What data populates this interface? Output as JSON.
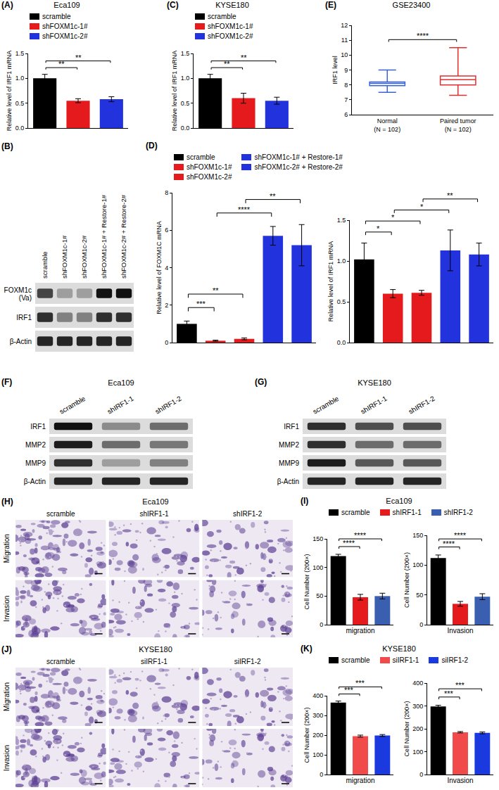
{
  "chart_data": [
    {
      "panel_label": "(A)",
      "type": "bar",
      "title": "Eca109",
      "categories": [
        "scramble",
        "shFOXM1c-1#",
        "shFOXM1c-2#"
      ],
      "values": [
        1.0,
        0.55,
        0.58
      ],
      "errors": [
        0.08,
        0.04,
        0.05
      ],
      "colors": [
        "#000000",
        "#e41a1c",
        "#2233dd"
      ],
      "y_label": "Relative level of IRF1 mRNA",
      "ylim": [
        0,
        1.5
      ],
      "yticks": [
        {
          "value": 0,
          "label": "0.0"
        },
        {
          "value": 0.5,
          "label": "0.5"
        },
        {
          "value": 1,
          "label": "1.0"
        },
        {
          "value": 1.5,
          "label": "1.5"
        }
      ],
      "tick_labels": "y",
      "grid": false,
      "legend": "top",
      "significance": [
        {
          "from": 0,
          "to": 1,
          "label": "**"
        },
        {
          "from": 0,
          "to": 2,
          "label": "**"
        }
      ]
    },
    {
      "panel_label": "(C)",
      "type": "bar",
      "title": "KYSE180",
      "categories": [
        "scramble",
        "shFOXM1c-1#",
        "shFOXM1c-2#"
      ],
      "values": [
        1.0,
        0.6,
        0.55
      ],
      "errors": [
        0.08,
        0.1,
        0.07
      ],
      "colors": [
        "#000000",
        "#e41a1c",
        "#2233dd"
      ],
      "y_label": "Relative level of IRF1 mRNA",
      "ylim": [
        0,
        1.5
      ],
      "yticks": [
        {
          "value": 0,
          "label": "0.0"
        },
        {
          "value": 0.5,
          "label": "0.5"
        },
        {
          "value": 1,
          "label": "1.0"
        },
        {
          "value": 1.5,
          "label": "1.5"
        }
      ],
      "tick_labels": "y",
      "grid": false,
      "legend": "top",
      "significance": [
        {
          "from": 0,
          "to": 1,
          "label": "**"
        },
        {
          "from": 0,
          "to": 2,
          "label": "**"
        }
      ]
    },
    {
      "panel_label": "(E)",
      "type": "box",
      "title": "GSE23400",
      "categories": [
        "Normal\n(N = 102)",
        "Paired tumor\n(N = 102)"
      ],
      "boxes": [
        {
          "min": 7.5,
          "q1": 7.95,
          "median": 8.1,
          "q3": 8.2,
          "max": 9.0
        },
        {
          "min": 7.3,
          "q1": 8.0,
          "median": 8.35,
          "q3": 8.6,
          "max": 10.5
        }
      ],
      "colors": [
        "#3b62d6",
        "#e03030"
      ],
      "y_label": "IRF1 level",
      "ylim": [
        6,
        12
      ],
      "yticks": [
        6,
        7,
        8,
        9,
        10,
        11,
        12
      ],
      "grid": false,
      "significance": [
        {
          "from": 0,
          "to": 1,
          "label": "****"
        }
      ]
    },
    {
      "panel_label": "(D)",
      "type": "bar",
      "categories": [
        "scramble",
        "shFOXM1c-1#",
        "shFOXM1c-2#",
        "shFOXM1c-1# + Restore-1#",
        "shFOXM1c-2# + Restore-2#"
      ],
      "values": [
        1.0,
        0.1,
        0.2,
        5.7,
        5.2
      ],
      "errors": [
        0.15,
        0.03,
        0.05,
        0.5,
        1.1
      ],
      "colors": [
        "#000000",
        "#e41a1c",
        "#e41a1c",
        "#2233dd",
        "#2233dd"
      ],
      "y_label": "Relative level of FOXM1C mRNA",
      "ylim": [
        0,
        8
      ],
      "yticks": [
        0,
        2,
        4,
        6,
        8
      ],
      "tick_labels": "y",
      "grid": false,
      "legend": "top",
      "significance": [
        {
          "from": 0,
          "to": 1,
          "label": "***"
        },
        {
          "from": 0,
          "to": 2,
          "label": "**"
        },
        {
          "from": 1,
          "to": 3,
          "label": "****"
        },
        {
          "from": 2,
          "to": 4,
          "label": "**"
        }
      ]
    },
    {
      "type": "bar",
      "categories": [
        "scramble",
        "shFOXM1c-1#",
        "shFOXM1c-2#",
        "shFOXM1c-1# + Restore-1#",
        "shFOXM1c-2# + Restore-2#"
      ],
      "values": [
        1.02,
        0.6,
        0.61,
        1.13,
        1.08
      ],
      "errors": [
        0.2,
        0.05,
        0.03,
        0.25,
        0.14
      ],
      "colors": [
        "#000000",
        "#e41a1c",
        "#e41a1c",
        "#2233dd",
        "#2233dd"
      ],
      "y_label": "Relative level of IRF1 mRNA",
      "ylim": [
        0,
        1.5
      ],
      "yticks": [
        {
          "value": 0,
          "label": "0.0"
        },
        {
          "value": 0.5,
          "label": "0.5"
        },
        {
          "value": 1,
          "label": "1.0"
        },
        {
          "value": 1.5,
          "label": "1.5"
        }
      ],
      "tick_labels": "y",
      "grid": false,
      "significance": [
        {
          "from": 0,
          "to": 1,
          "label": "*"
        },
        {
          "from": 0,
          "to": 2,
          "label": "*"
        },
        {
          "from": 1,
          "to": 3,
          "label": "*"
        },
        {
          "from": 2,
          "to": 4,
          "label": "**"
        }
      ]
    },
    {
      "panel_label": "(I)",
      "type": "bar",
      "title": "Eca109",
      "categories": [
        "scramble",
        "shIRF1-1",
        "shIRF1-2"
      ],
      "values": [
        120,
        48,
        50
      ],
      "errors": [
        3,
        5,
        5
      ],
      "colors": [
        "#000000",
        "#e41a1c",
        "#3a5fb0"
      ],
      "x_label": "migration",
      "y_label": "Cell Number (200×)",
      "ylim": [
        0,
        150
      ],
      "yticks": [
        0,
        50,
        100,
        150
      ],
      "tick_labels": "y",
      "grid": false,
      "legend": "top",
      "significance": [
        {
          "from": 0,
          "to": 1,
          "label": "****"
        },
        {
          "from": 0,
          "to": 2,
          "label": "****"
        }
      ]
    },
    {
      "type": "bar",
      "categories": [
        "scramble",
        "shIRF1-1",
        "shIRF1-2"
      ],
      "values": [
        112,
        35,
        47
      ],
      "errors": [
        5,
        4,
        5
      ],
      "colors": [
        "#000000",
        "#e41a1c",
        "#3a5fb0"
      ],
      "x_label": "Invasion",
      "y_label": "Cell Number (200×)",
      "ylim": [
        0,
        150
      ],
      "yticks": [
        0,
        50,
        100,
        150
      ],
      "tick_labels": "y",
      "grid": false,
      "significance": [
        {
          "from": 0,
          "to": 1,
          "label": "****"
        },
        {
          "from": 0,
          "to": 2,
          "label": "****"
        }
      ]
    },
    {
      "panel_label": "(K)",
      "type": "bar",
      "title": "KYSE180",
      "categories": [
        "scramble",
        "siIRF1-1",
        "siIRF1-2"
      ],
      "values": [
        365,
        195,
        198
      ],
      "errors": [
        8,
        5,
        5
      ],
      "colors": [
        "#000000",
        "#f04a4a",
        "#1a3ae0"
      ],
      "x_label": "migration",
      "y_label": "Cell Number (200×)",
      "ylim": [
        0,
        400
      ],
      "yticks": [
        0,
        100,
        200,
        300,
        400
      ],
      "tick_labels": "y",
      "grid": false,
      "legend": "top",
      "significance": [
        {
          "from": 0,
          "to": 1,
          "label": "***"
        },
        {
          "from": 0,
          "to": 2,
          "label": "***"
        }
      ]
    },
    {
      "type": "bar",
      "categories": [
        "scramble",
        "siIRF1-1",
        "siIRF1-2"
      ],
      "values": [
        298,
        185,
        182
      ],
      "errors": [
        5,
        3,
        4
      ],
      "colors": [
        "#000000",
        "#f04a4a",
        "#1a3ae0"
      ],
      "x_label": "Invasion",
      "y_label": "Cell Number (200×)",
      "ylim": [
        0,
        400
      ],
      "yticks": [
        0,
        100,
        200,
        300,
        400
      ],
      "tick_labels": "y",
      "grid": false,
      "significance": [
        {
          "from": 0,
          "to": 1,
          "label": "***"
        },
        {
          "from": 0,
          "to": 2,
          "label": "***"
        }
      ]
    }
  ],
  "blots": [
    {
      "panel_label": "(B)",
      "lanes": [
        "scramble",
        "shFOXM1c-1#",
        "shFOXM1c-2#",
        "shFOXM1c-1# + Restore-1#",
        "shFOXM1c-2# + Restore-2#"
      ],
      "rows": [
        {
          "label": "FOXM1c\n(Va)",
          "band_intensity": [
            0.75,
            0.3,
            0.3,
            1.0,
            1.0
          ]
        },
        {
          "label": "IRF1",
          "band_intensity": [
            0.85,
            0.45,
            0.45,
            0.85,
            0.85
          ]
        },
        {
          "label": "β-Actin",
          "band_intensity": [
            0.9,
            0.9,
            0.9,
            0.9,
            0.9
          ]
        }
      ]
    },
    {
      "panel_label": "(F)",
      "title": "Eca109",
      "lanes": [
        "scramble",
        "shIRF1-1",
        "shIRF1-2"
      ],
      "rows": [
        {
          "label": "IRF1",
          "band_intensity": [
            1.0,
            0.4,
            0.55
          ]
        },
        {
          "label": "MMP2",
          "band_intensity": [
            0.95,
            0.55,
            0.5
          ]
        },
        {
          "label": "MMP9",
          "band_intensity": [
            0.85,
            0.3,
            0.45
          ]
        },
        {
          "label": "β-Actin",
          "band_intensity": [
            0.9,
            0.9,
            0.9
          ]
        }
      ]
    },
    {
      "panel_label": "(G)",
      "title": "KYSE180",
      "lanes": [
        "scramble",
        "shIRF1-1",
        "shIRF1-2"
      ],
      "rows": [
        {
          "label": "IRF1",
          "band_intensity": [
            0.85,
            0.7,
            0.7
          ]
        },
        {
          "label": "MMP2",
          "band_intensity": [
            0.85,
            0.55,
            0.55
          ]
        },
        {
          "label": "MMP9",
          "band_intensity": [
            0.95,
            0.65,
            0.65
          ]
        },
        {
          "label": "β-Actin",
          "band_intensity": [
            0.9,
            0.9,
            0.9
          ]
        }
      ]
    }
  ],
  "micrographs": [
    {
      "panel_label": "(H)",
      "title": "Eca109",
      "columns": [
        "scramble",
        "shIRF1-1",
        "shIRF1-2"
      ],
      "rows": [
        "Migration",
        "Invasion"
      ]
    },
    {
      "panel_label": "(J)",
      "title": "KYSE180",
      "columns": [
        "scramble",
        "siIRF1-1",
        "siIRF1-2"
      ],
      "rows": [
        "Migration",
        "Invasion"
      ]
    }
  ]
}
